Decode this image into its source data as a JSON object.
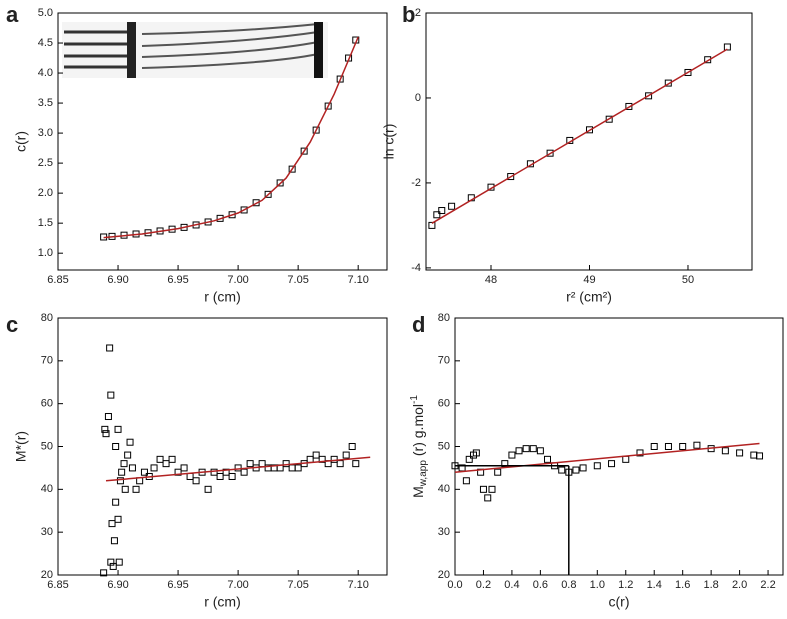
{
  "chart_data": [
    {
      "type": "scatter",
      "letter": "a",
      "x_label": "r (cm)",
      "y_label": "c(r)",
      "xlim": [
        6.85,
        7.124
      ],
      "ylim": [
        0.72,
        5.0
      ],
      "xticks": [
        6.85,
        {
          "value": 6.9,
          "label": "6.90"
        },
        6.95,
        {
          "value": 7.0,
          "label": "7.00"
        },
        7.05,
        {
          "value": 7.1,
          "label": "7.10"
        }
      ],
      "yticks": [
        {
          "value": 1,
          "label": "1.0"
        },
        1.5,
        {
          "value": 2,
          "label": "2.0"
        },
        2.5,
        {
          "value": 3,
          "label": "3.0"
        },
        3.5,
        {
          "value": 4,
          "label": "4.0"
        },
        4.5,
        {
          "value": 5,
          "label": "5.0"
        }
      ],
      "series": [
        {
          "kind": "marker",
          "color": "#000000",
          "x": [
            6.888,
            6.895,
            6.905,
            6.915,
            6.925,
            6.935,
            6.945,
            6.955,
            6.965,
            6.975,
            6.985,
            6.995,
            7.005,
            7.015,
            7.025,
            7.035,
            7.045,
            7.055,
            7.065,
            7.075,
            7.085,
            7.092,
            7.098
          ],
          "values": [
            1.27,
            1.28,
            1.3,
            1.32,
            1.34,
            1.37,
            1.4,
            1.43,
            1.47,
            1.52,
            1.58,
            1.64,
            1.72,
            1.84,
            1.98,
            2.17,
            2.4,
            2.7,
            3.05,
            3.45,
            3.9,
            4.25,
            4.55
          ]
        },
        {
          "kind": "line",
          "color": "#b22222",
          "x": [
            6.888,
            6.92,
            6.95,
            6.98,
            7.0,
            7.02,
            7.04,
            7.06,
            7.08,
            7.1
          ],
          "values": [
            1.26,
            1.32,
            1.41,
            1.54,
            1.67,
            1.88,
            2.25,
            2.85,
            3.65,
            4.6
          ]
        }
      ]
    },
    {
      "type": "scatter",
      "letter": "b",
      "x_label": "r² (cm²)",
      "y_label": "ln c(r)",
      "xlim": [
        47.34,
        50.65
      ],
      "ylim": [
        -4.05,
        2
      ],
      "xticks": [
        48,
        49,
        50
      ],
      "yticks": [
        -4,
        -2,
        0,
        2
      ],
      "series": [
        {
          "kind": "marker",
          "color": "#000000",
          "x": [
            47.4,
            47.45,
            47.5,
            47.6,
            47.8,
            48.0,
            48.2,
            48.4,
            48.6,
            48.8,
            49.0,
            49.2,
            49.4,
            49.6,
            49.8,
            50.0,
            50.2,
            50.4
          ],
          "values": [
            -3.0,
            -2.75,
            -2.65,
            -2.55,
            -2.35,
            -2.1,
            -1.85,
            -1.55,
            -1.3,
            -1.0,
            -0.75,
            -0.5,
            -0.2,
            0.05,
            0.35,
            0.6,
            0.9,
            1.2
          ]
        },
        {
          "kind": "line",
          "color": "#b22222",
          "x": [
            47.4,
            50.4
          ],
          "values": [
            -2.95,
            1.15
          ]
        }
      ]
    },
    {
      "type": "scatter",
      "letter": "c",
      "x_label": "r (cm)",
      "y_label": "M*(r)",
      "xlim": [
        6.85,
        7.124
      ],
      "ylim": [
        20,
        80
      ],
      "xticks": [
        6.85,
        {
          "value": 6.9,
          "label": "6.90"
        },
        6.95,
        {
          "value": 7.0,
          "label": "7.00"
        },
        7.05,
        {
          "value": 7.1,
          "label": "7.10"
        }
      ],
      "yticks": [
        20,
        30,
        40,
        50,
        60,
        70,
        80
      ],
      "series": [
        {
          "kind": "marker",
          "color": "#000000",
          "x": [
            6.888,
            6.889,
            6.89,
            6.892,
            6.893,
            6.894,
            6.894,
            6.896,
            6.895,
            6.897,
            6.898,
            6.898,
            6.9,
            6.9,
            6.901,
            6.902,
            6.903,
            6.905,
            6.906,
            6.908,
            6.91,
            6.912,
            6.915,
            6.918,
            6.922,
            6.926,
            6.93,
            6.935,
            6.94,
            6.945,
            6.95,
            6.955,
            6.96,
            6.965,
            6.97,
            6.975,
            6.98,
            6.985,
            6.99,
            6.995,
            7.0,
            7.005,
            7.01,
            7.015,
            7.02,
            7.025,
            7.03,
            7.035,
            7.04,
            7.045,
            7.05,
            7.055,
            7.06,
            7.065,
            7.07,
            7.075,
            7.08,
            7.085,
            7.09,
            7.095,
            7.098
          ],
          "values": [
            20.5,
            54,
            53,
            57,
            73,
            62,
            23,
            22,
            32,
            28,
            37,
            50,
            54,
            33,
            23,
            42,
            44,
            46,
            40,
            48,
            51,
            45,
            40,
            42,
            44,
            43,
            45,
            47,
            46,
            47,
            44,
            45,
            43,
            42,
            44,
            40,
            44,
            43,
            44,
            43,
            45,
            44,
            46,
            45,
            46,
            45,
            45,
            45,
            46,
            45,
            45,
            46,
            47,
            48,
            47,
            46,
            47,
            46,
            48,
            50,
            46
          ]
        },
        {
          "kind": "line",
          "color": "#b22222",
          "x": [
            6.89,
            7.11
          ],
          "values": [
            42,
            47.5
          ]
        }
      ]
    },
    {
      "type": "scatter",
      "letter": "d",
      "x_label": "c(r)",
      "y_label": [
        "M",
        "w,app",
        "(r) g.mol",
        "-1"
      ],
      "xlim": [
        0,
        2.305
      ],
      "ylim": [
        20,
        80
      ],
      "xticks": [
        {
          "value": 0,
          "label": "0.0"
        },
        0.2,
        0.4,
        0.6,
        0.8,
        {
          "value": 1,
          "label": "1.0"
        },
        1.2,
        1.4,
        1.6,
        1.8,
        {
          "value": 2,
          "label": "2.0"
        },
        2.2
      ],
      "yticks": [
        20,
        30,
        40,
        50,
        60,
        70,
        80
      ],
      "series": [
        {
          "kind": "marker",
          "color": "#000000",
          "x": [
            0.0,
            0.05,
            0.08,
            0.1,
            0.13,
            0.15,
            0.18,
            0.2,
            0.23,
            0.26,
            0.3,
            0.35,
            0.4,
            0.45,
            0.5,
            0.55,
            0.6,
            0.65,
            0.7,
            0.75,
            0.8,
            0.85,
            0.9,
            1.0,
            1.1,
            1.2,
            1.3,
            1.4,
            1.5,
            1.6,
            1.7,
            1.8,
            1.9,
            2.0,
            2.1,
            2.14
          ],
          "values": [
            45.5,
            45,
            42,
            47,
            48,
            48.5,
            44,
            40,
            38,
            40,
            44,
            46,
            48,
            49,
            49.5,
            49.5,
            49,
            47,
            45.5,
            44.5,
            44,
            44.5,
            45,
            45.5,
            46,
            47,
            48.5,
            50,
            50,
            50,
            50.3,
            49.5,
            49,
            48.5,
            48,
            47.8
          ]
        },
        {
          "kind": "line",
          "color": "#b22222",
          "x": [
            0,
            2.14
          ],
          "values": [
            44,
            50.7
          ]
        },
        {
          "kind": "line",
          "color": "#000000",
          "x": [
            0,
            0.8
          ],
          "values": [
            45.5,
            45.5
          ]
        },
        {
          "kind": "line",
          "color": "#000000",
          "x": [
            0.8,
            0.8
          ],
          "values": [
            45.5,
            20
          ]
        }
      ]
    }
  ]
}
